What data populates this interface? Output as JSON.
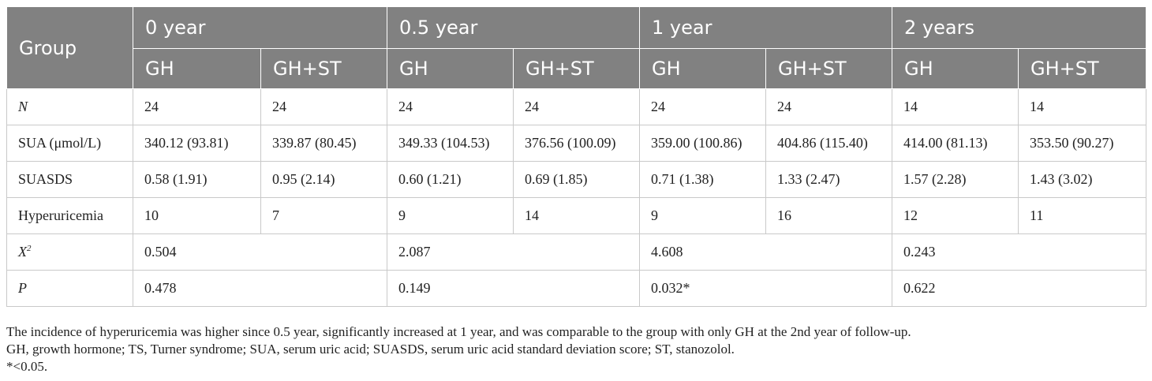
{
  "table": {
    "group_header": "Group",
    "periods": [
      "0 year",
      "0.5 year",
      "1 year",
      "2 years"
    ],
    "subheaders": [
      "GH",
      "GH+ST",
      "GH",
      "GH+ST",
      "GH",
      "GH+ST",
      "GH",
      "GH+ST"
    ],
    "rows": [
      {
        "label": "N",
        "cells": [
          "24",
          "24",
          "24",
          "24",
          "24",
          "24",
          "14",
          "14"
        ]
      },
      {
        "label": "SUA (μmol/L)",
        "cells": [
          "340.12 (93.81)",
          "339.87 (80.45)",
          "349.33 (104.53)",
          "376.56 (100.09)",
          "359.00 (100.86)",
          "404.86 (115.40)",
          "414.00 (81.13)",
          "353.50 (90.27)"
        ]
      },
      {
        "label": "SUASDS",
        "cells": [
          "0.58 (1.91)",
          "0.95 (2.14)",
          "0.60 (1.21)",
          "0.69 (1.85)",
          "0.71 (1.38)",
          "1.33 (2.47)",
          "1.57 (2.28)",
          "1.43 (3.02)"
        ]
      },
      {
        "label": "Hyperuricemia",
        "cells": [
          "10",
          "7",
          "9",
          "14",
          "9",
          "16",
          "12",
          "11"
        ]
      }
    ],
    "chi_label": "X",
    "chi_sup": "2",
    "chi_values": [
      "0.504",
      "2.087",
      "4.608",
      "0.243"
    ],
    "p_label": "P",
    "p_values": [
      "0.478",
      "0.149",
      "0.032*",
      "0.622"
    ]
  },
  "notes": [
    "The incidence of hyperuricemia was higher since 0.5 year, significantly increased at 1 year, and was comparable to the group with only GH at the 2nd year of follow-up.",
    "GH, growth hormone; TS, Turner syndrome; SUA, serum uric acid; SUASDS, serum uric acid standard deviation score; ST, stanozolol.",
    "*<0.05."
  ]
}
